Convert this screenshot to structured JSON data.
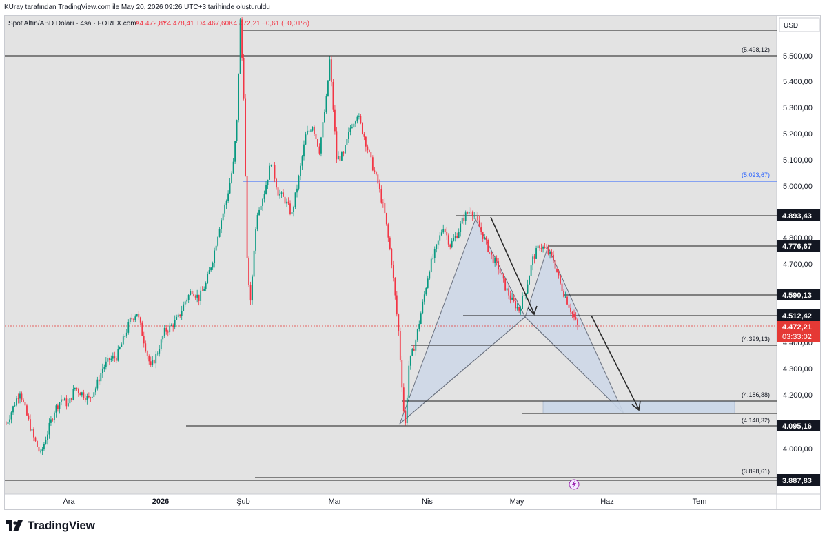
{
  "header": {
    "caption": "KUray tarafından TradingView.com ile May 20, 2026 09:26 UTC+3 tarihinde oluşturuldu"
  },
  "legend": {
    "symbol": "Spot Altın/ABD Doları · 4sa · FOREX.com",
    "open": "A4.472,81",
    "high": "Y4.478,41",
    "low": "D4.467,60",
    "close": "K4.472,21",
    "change": "−0,61 (−0,01%)"
  },
  "currency": "USD",
  "brand": "TradingView",
  "colors": {
    "background": "#e3e3e3",
    "up": "#089981",
    "down": "#f23645",
    "blue_line": "#2962ff",
    "pattern_fill": "#c9d6e8",
    "last_price_badge": "#e53935"
  },
  "chart_data": {
    "type": "candlestick",
    "x_ticks": [
      "Ara",
      "2026",
      "Şub",
      "Mar",
      "Nis",
      "May",
      "Haz",
      "Tem"
    ],
    "y_ticks": [
      "5.500,00",
      "5.400,00",
      "5.300,00",
      "5.200,00",
      "5.100,00",
      "5.000,00",
      "4.800,00",
      "4.700,00",
      "4.400,00",
      "4.300,00",
      "4.200,00",
      "4.000,00"
    ],
    "y_range": [
      3870,
      5580
    ],
    "price_path": [
      [
        0,
        4120
      ],
      [
        4,
        4180
      ],
      [
        8,
        4240
      ],
      [
        12,
        4150
      ],
      [
        16,
        4070
      ],
      [
        20,
        4010
      ],
      [
        24,
        4090
      ],
      [
        28,
        4170
      ],
      [
        32,
        4210
      ],
      [
        36,
        4190
      ],
      [
        40,
        4250
      ],
      [
        44,
        4230
      ],
      [
        48,
        4210
      ],
      [
        52,
        4250
      ],
      [
        56,
        4320
      ],
      [
        60,
        4350
      ],
      [
        64,
        4360
      ],
      [
        68,
        4420
      ],
      [
        72,
        4490
      ],
      [
        76,
        4520
      ],
      [
        80,
        4420
      ],
      [
        84,
        4320
      ],
      [
        88,
        4380
      ],
      [
        92,
        4450
      ],
      [
        96,
        4470
      ],
      [
        100,
        4500
      ],
      [
        104,
        4560
      ],
      [
        108,
        4600
      ],
      [
        112,
        4570
      ],
      [
        116,
        4620
      ],
      [
        120,
        4710
      ],
      [
        124,
        4830
      ],
      [
        128,
        4920
      ],
      [
        132,
        5050
      ],
      [
        134,
        5200
      ],
      [
        136,
        5560
      ],
      [
        138,
        5300
      ],
      [
        140,
        4700
      ],
      [
        142,
        4550
      ],
      [
        144,
        4750
      ],
      [
        146,
        4880
      ],
      [
        150,
        4950
      ],
      [
        154,
        5060
      ],
      [
        158,
        4950
      ],
      [
        162,
        4920
      ],
      [
        166,
        4870
      ],
      [
        170,
        5000
      ],
      [
        174,
        5150
      ],
      [
        178,
        5190
      ],
      [
        182,
        5100
      ],
      [
        186,
        5280
      ],
      [
        188,
        5420
      ],
      [
        190,
        5250
      ],
      [
        192,
        5070
      ],
      [
        196,
        5080
      ],
      [
        200,
        5180
      ],
      [
        204,
        5230
      ],
      [
        208,
        5150
      ],
      [
        212,
        5060
      ],
      [
        216,
        4980
      ],
      [
        220,
        4870
      ],
      [
        224,
        4700
      ],
      [
        228,
        4450
      ],
      [
        231,
        4170
      ],
      [
        232,
        4120
      ],
      [
        234,
        4330
      ],
      [
        238,
        4420
      ],
      [
        242,
        4550
      ],
      [
        246,
        4680
      ],
      [
        250,
        4750
      ],
      [
        254,
        4830
      ],
      [
        258,
        4760
      ],
      [
        262,
        4800
      ],
      [
        266,
        4860
      ],
      [
        270,
        4890
      ],
      [
        274,
        4840
      ],
      [
        278,
        4780
      ],
      [
        282,
        4720
      ],
      [
        286,
        4680
      ],
      [
        290,
        4610
      ],
      [
        294,
        4560
      ],
      [
        298,
        4530
      ],
      [
        302,
        4600
      ],
      [
        306,
        4710
      ],
      [
        310,
        4760
      ],
      [
        314,
        4740
      ],
      [
        318,
        4710
      ],
      [
        322,
        4620
      ],
      [
        326,
        4560
      ],
      [
        330,
        4500
      ],
      [
        332,
        4470
      ]
    ],
    "levels": [
      {
        "label": "4.893,43",
        "style": "badge"
      },
      {
        "label": "4.776,67",
        "style": "badge"
      },
      {
        "label": "4.590,13",
        "style": "badge"
      },
      {
        "label": "4.512,42",
        "style": "badge"
      },
      {
        "label": "4.095,16",
        "style": "badge"
      },
      {
        "label": "3.887,83",
        "style": "badge"
      }
    ],
    "annotations": [
      {
        "label": "(5.498,12)"
      },
      {
        "label": "(5.023,67)"
      },
      {
        "label": "(4.399,13)"
      },
      {
        "label": "(4.186,88)"
      },
      {
        "label": "(4.140,32)"
      },
      {
        "label": "(3.898,61)"
      }
    ],
    "last_price": {
      "value": "4.472,21",
      "countdown": "03:33:02"
    }
  }
}
